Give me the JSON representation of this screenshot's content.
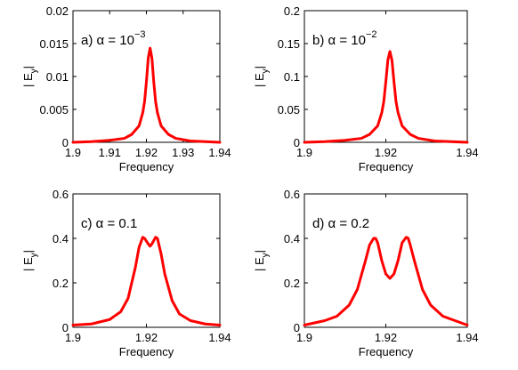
{
  "chart_data": [
    {
      "type": "line",
      "panel_label": "a) α = 10",
      "panel_label_exp": "−3",
      "xlabel": "Frequency",
      "ylabel": "| E",
      "ylabel_sub": "y",
      "ylabel_tail": "|",
      "xlim": [
        1.9,
        1.94
      ],
      "ylim": [
        0,
        0.02
      ],
      "xticks": [
        "1.9",
        "1.91",
        "1.92",
        "1.93",
        "1.94"
      ],
      "yticks": [
        "0",
        "0.005",
        "0.01",
        "0.015",
        "0.02"
      ],
      "series": [
        {
          "color": "#ff0000",
          "x": [
            1.9,
            1.905,
            1.91,
            1.914,
            1.916,
            1.918,
            1.919,
            1.9195,
            1.92,
            1.9205,
            1.921,
            1.9215,
            1.922,
            1.9225,
            1.923,
            1.924,
            1.926,
            1.928,
            1.932,
            1.936,
            1.94
          ],
          "y": [
            0,
            0.0001,
            0.0003,
            0.0006,
            0.0012,
            0.0025,
            0.0045,
            0.0062,
            0.0092,
            0.0128,
            0.0143,
            0.0128,
            0.0092,
            0.0062,
            0.0045,
            0.0025,
            0.0012,
            0.0006,
            0.0002,
            0.0001,
            0
          ]
        }
      ]
    },
    {
      "type": "line",
      "panel_label": "b) α = 10",
      "panel_label_exp": "−2",
      "xlabel": "Frequency",
      "ylabel": "| E",
      "ylabel_sub": "y",
      "ylabel_tail": "|",
      "xlim": [
        1.9,
        1.94
      ],
      "ylim": [
        0,
        0.2
      ],
      "xticks": [
        "1.9",
        "1.92",
        "1.94"
      ],
      "yticks": [
        "0",
        "0.05",
        "0.1",
        "0.15",
        "0.2"
      ],
      "series": [
        {
          "color": "#ff0000",
          "x": [
            1.9,
            1.905,
            1.91,
            1.914,
            1.916,
            1.918,
            1.919,
            1.9195,
            1.92,
            1.9205,
            1.921,
            1.9215,
            1.922,
            1.9225,
            1.923,
            1.924,
            1.926,
            1.928,
            1.932,
            1.936,
            1.94
          ],
          "y": [
            0,
            0.001,
            0.003,
            0.006,
            0.012,
            0.025,
            0.045,
            0.062,
            0.092,
            0.125,
            0.138,
            0.125,
            0.092,
            0.062,
            0.045,
            0.025,
            0.012,
            0.006,
            0.002,
            0.001,
            0
          ]
        }
      ]
    },
    {
      "type": "line",
      "panel_label": "c) α = 0.1",
      "panel_label_exp": "",
      "xlabel": "Frequency",
      "ylabel": "| E",
      "ylabel_sub": "y",
      "ylabel_tail": "|",
      "xlim": [
        1.9,
        1.94
      ],
      "ylim": [
        0,
        0.6
      ],
      "xticks": [
        "1.9",
        "1.92",
        "1.94"
      ],
      "yticks": [
        "0",
        "0.2",
        "0.4",
        "0.6"
      ],
      "series": [
        {
          "color": "#ff0000",
          "x": [
            1.9,
            1.905,
            1.91,
            1.913,
            1.915,
            1.917,
            1.918,
            1.919,
            1.9195,
            1.9205,
            1.921,
            1.9215,
            1.9225,
            1.923,
            1.924,
            1.925,
            1.927,
            1.929,
            1.932,
            1.936,
            1.94
          ],
          "y": [
            0.01,
            0.015,
            0.035,
            0.07,
            0.13,
            0.27,
            0.36,
            0.405,
            0.4,
            0.375,
            0.365,
            0.375,
            0.405,
            0.4,
            0.33,
            0.24,
            0.12,
            0.06,
            0.03,
            0.015,
            0.01
          ]
        }
      ]
    },
    {
      "type": "line",
      "panel_label": "d) α = 0.2",
      "panel_label_exp": "",
      "xlabel": "Frequency",
      "ylabel": "| E",
      "ylabel_sub": "y",
      "ylabel_tail": "|",
      "xlim": [
        1.9,
        1.94
      ],
      "ylim": [
        0,
        0.6
      ],
      "xticks": [
        "1.9",
        "1.92",
        "1.94"
      ],
      "yticks": [
        "0",
        "0.2",
        "0.4",
        "0.6"
      ],
      "series": [
        {
          "color": "#ff0000",
          "x": [
            1.9,
            1.905,
            1.908,
            1.911,
            1.913,
            1.915,
            1.916,
            1.917,
            1.9175,
            1.918,
            1.919,
            1.92,
            1.921,
            1.922,
            1.923,
            1.924,
            1.925,
            1.9255,
            1.926,
            1.927,
            1.929,
            1.931,
            1.934,
            1.937,
            1.94
          ],
          "y": [
            0.01,
            0.03,
            0.05,
            0.1,
            0.17,
            0.3,
            0.37,
            0.4,
            0.4,
            0.38,
            0.3,
            0.24,
            0.22,
            0.24,
            0.3,
            0.38,
            0.405,
            0.4,
            0.37,
            0.3,
            0.17,
            0.1,
            0.05,
            0.03,
            0.01
          ]
        }
      ]
    }
  ]
}
